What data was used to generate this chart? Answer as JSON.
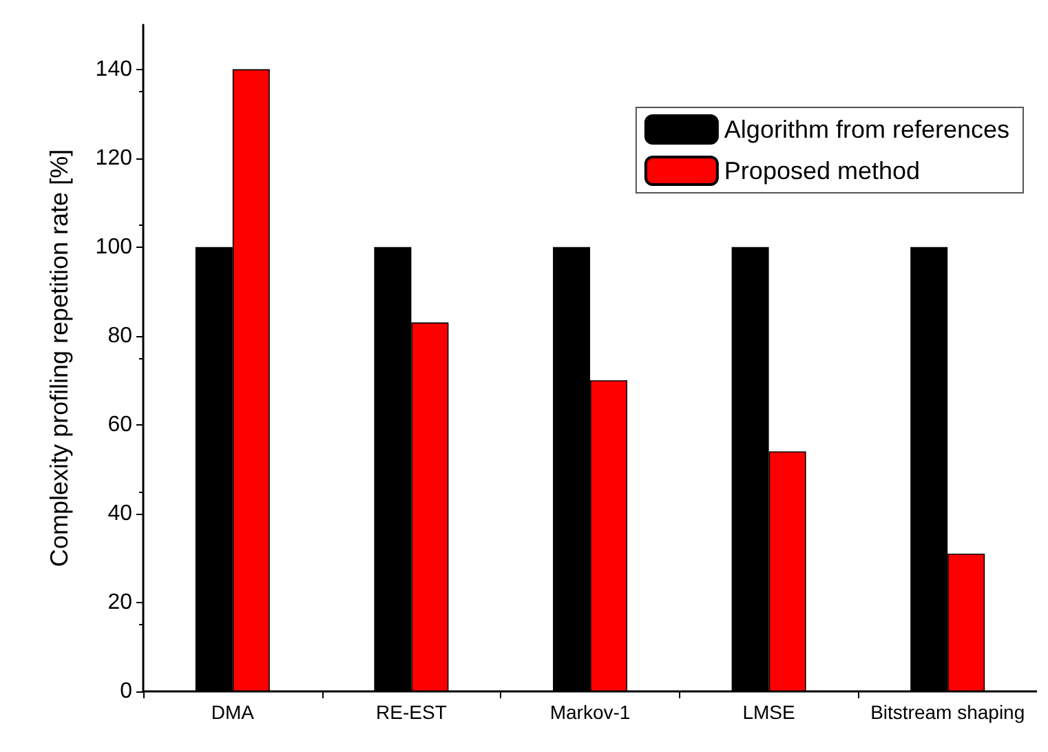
{
  "chart_data": {
    "type": "bar",
    "ylabel": "Complexity profiling repetition rate [%]",
    "categories": [
      "DMA",
      "RE-EST",
      "Markov-1",
      "LMSE",
      "Bitstream shaping"
    ],
    "series": [
      {
        "name": "Algorithm from references",
        "color": "#000000",
        "values": [
          100,
          100,
          100,
          100,
          100
        ]
      },
      {
        "name": "Proposed method",
        "color": "#ff0000",
        "values": [
          140,
          83,
          70,
          54,
          31
        ]
      }
    ],
    "ylim": [
      0,
      150
    ],
    "yticks": [
      0,
      20,
      40,
      60,
      80,
      100,
      120,
      140
    ],
    "legend": "top right",
    "grid": false
  }
}
